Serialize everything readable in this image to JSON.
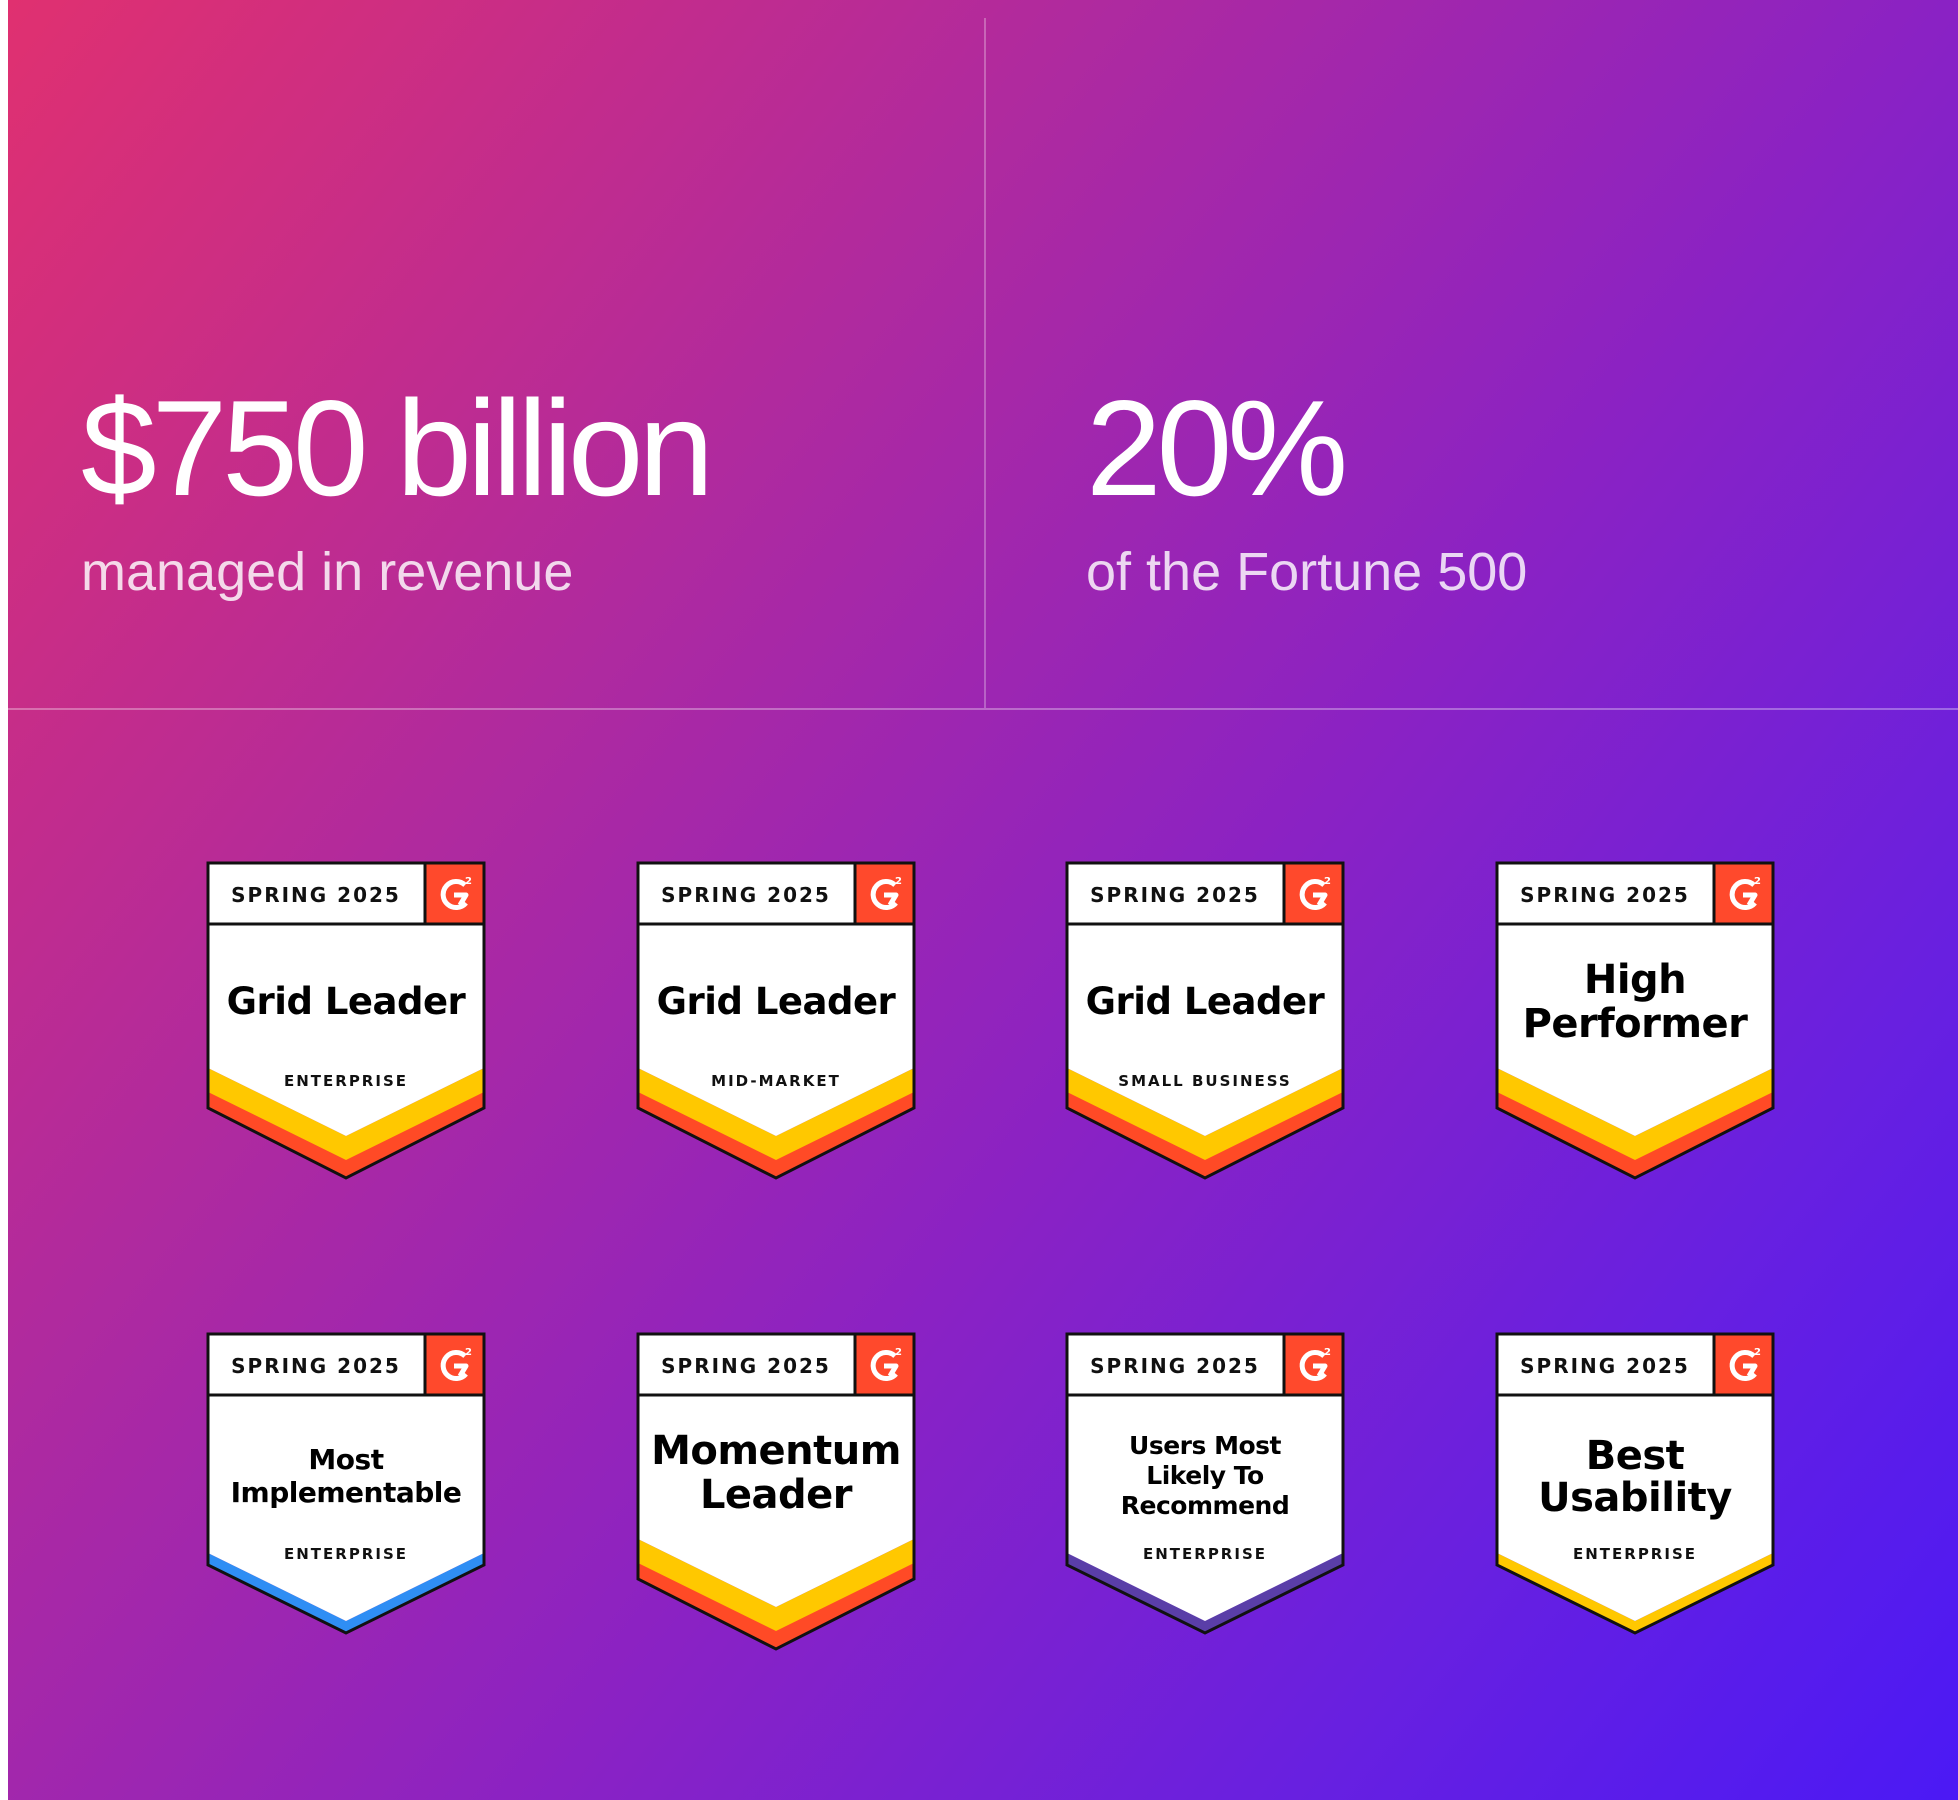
{
  "stats": [
    {
      "value": "$750 billion",
      "caption": "managed in revenue"
    },
    {
      "value": "20%",
      "caption": "of the Fortune 500"
    }
  ],
  "badges": [
    {
      "season": "SPRING 2025",
      "title": "Grid Leader",
      "subtitle": "ENTERPRISE",
      "ribbon": "orange"
    },
    {
      "season": "SPRING 2025",
      "title": "Grid Leader",
      "subtitle": "MID-MARKET",
      "ribbon": "orange"
    },
    {
      "season": "SPRING 2025",
      "title": "Grid Leader",
      "subtitle": "SMALL BUSINESS",
      "ribbon": "orange"
    },
    {
      "season": "SPRING 2025",
      "title": "High\nPerformer",
      "subtitle": "",
      "ribbon": "orange"
    },
    {
      "season": "SPRING 2025",
      "title": "Most\nImplementable",
      "subtitle": "ENTERPRISE",
      "ribbon": "blue"
    },
    {
      "season": "SPRING 2025",
      "title": "Momentum\nLeader",
      "subtitle": "",
      "ribbon": "orange"
    },
    {
      "season": "SPRING 2025",
      "title": "Users Most\nLikely To\nRecommend",
      "subtitle": "ENTERPRISE",
      "ribbon": "purple"
    },
    {
      "season": "SPRING 2025",
      "title": "Best\nUsability",
      "subtitle": "ENTERPRISE",
      "ribbon": "yellow"
    }
  ],
  "colors": {
    "g2_red": "#ff492c",
    "ribbon_yellow": "#ffc800",
    "ribbon_orange": "#ff4a26",
    "ribbon_blue": "#2f8ef4",
    "ribbon_purple": "#5a3ea8"
  },
  "icons": {
    "g2_logo": "g2-logo-icon"
  }
}
